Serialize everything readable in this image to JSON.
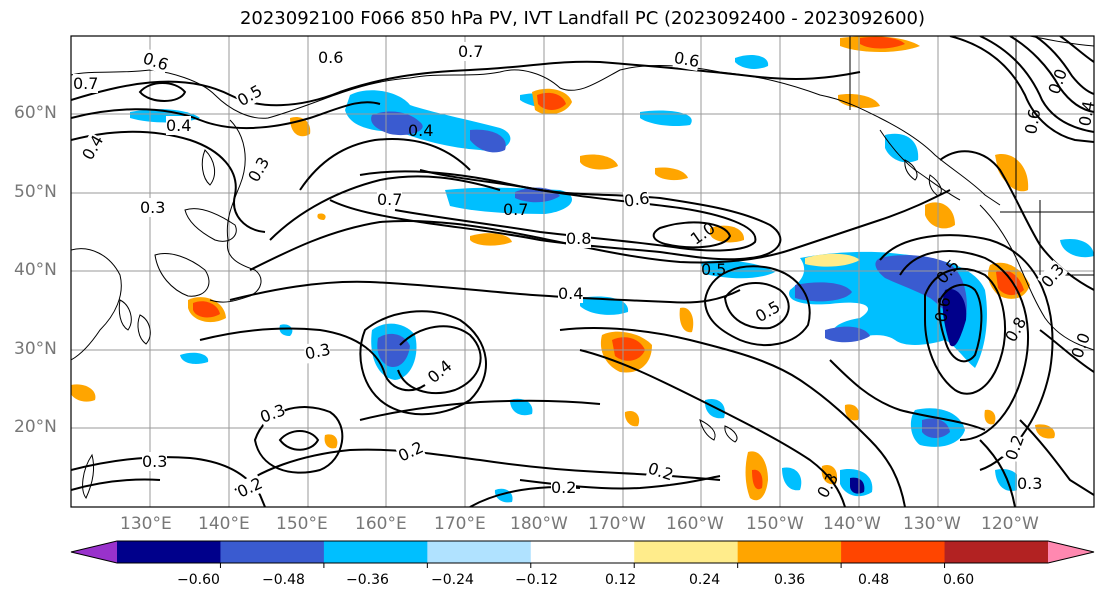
{
  "title": "2023092100 F066 850 hPa PV, IVT Landfall PC (2023092400 - 2023092600)",
  "latitude_labels": [
    "60°N",
    "50°N",
    "40°N",
    "30°N",
    "20°N"
  ],
  "longitude_labels": [
    "130°E",
    "140°E",
    "150°E",
    "160°E",
    "170°E",
    "180°W",
    "170°W",
    "160°W",
    "150°W",
    "140°W",
    "130°W",
    "120°W"
  ],
  "colorbar": {
    "colors": [
      "#9932cc",
      "#00008b",
      "#3a5bd0",
      "#00bfff",
      "#b0e2ff",
      "#ffffff",
      "#ffec8b",
      "#ffa500",
      "#ff4500",
      "#b22222",
      "#ff88b0"
    ],
    "tick_labels": [
      "−0.60",
      "−0.48",
      "−0.36",
      "−0.24",
      "−0.12",
      "0.12",
      "0.24",
      "0.36",
      "0.48",
      "0.60"
    ]
  },
  "contour_labels": [
    "0.6",
    "0.6",
    "0.7",
    "0.6",
    "0.5",
    "0.4",
    "0.4",
    "0.4",
    "0.3",
    "0.7",
    "0.7",
    "0.6",
    "0.8",
    "1.0",
    "0.5",
    "0.4",
    "0.5",
    "0.3",
    "0.4",
    "0.3",
    "0.3",
    "0.2",
    "0.2",
    "0.2",
    "0.2",
    "0.3",
    "0.3",
    "0.6",
    "0.5",
    "0.8",
    "0.3",
    "0.2",
    "0.3",
    "0.4",
    "0.7",
    "0.6",
    "0.0",
    "0.0"
  ]
}
